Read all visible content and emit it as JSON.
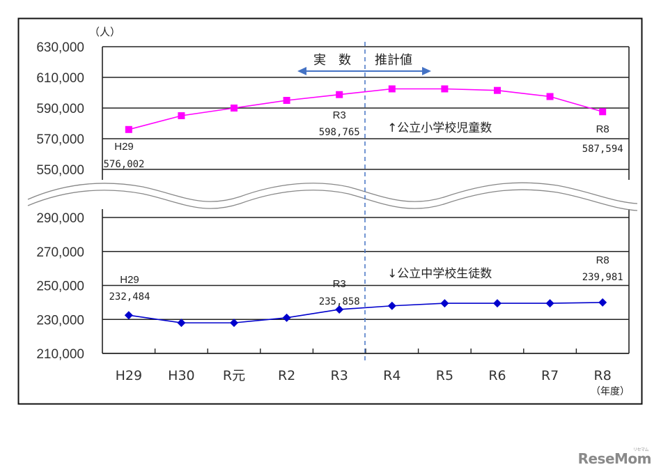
{
  "chart_data": {
    "type": "line",
    "title": "",
    "unit_label": "（人）",
    "xlabel": "（年度）",
    "categories": [
      "H29",
      "H30",
      "R元",
      "R2",
      "R3",
      "R4",
      "R5",
      "R6",
      "R7",
      "R8"
    ],
    "divider": {
      "between": [
        "R3",
        "R4"
      ],
      "left_label": "実　数",
      "right_label": "推計値",
      "style": "dashed",
      "color": "#4472c4"
    },
    "panels": [
      {
        "name": "upper",
        "ylim": [
          550000,
          630000
        ],
        "yticks": [
          "630,000",
          "610,000",
          "590,000",
          "570,000",
          "550,000"
        ],
        "series": [
          {
            "name": "↑公立小学校児童数",
            "color": "#ff00ff",
            "marker": "square",
            "values": [
              576002,
              585000,
              590000,
              595000,
              598765,
              602500,
              602500,
              601500,
              597500,
              587594
            ]
          }
        ],
        "annotations": [
          {
            "category": "H29",
            "label": "H29",
            "value": "576,002"
          },
          {
            "category": "R3",
            "label": "R3",
            "value": "598,765"
          },
          {
            "category": "R8",
            "label": "R8",
            "value": "587,594"
          }
        ]
      },
      {
        "name": "lower",
        "ylim": [
          210000,
          290000
        ],
        "yticks": [
          "290,000",
          "270,000",
          "250,000",
          "230,000",
          "210,000"
        ],
        "series": [
          {
            "name": "↓公立中学校生徒数",
            "color": "#0000cc",
            "marker": "diamond",
            "values": [
              232484,
              228000,
              228000,
              231000,
              235858,
              238000,
              239500,
              239500,
              239500,
              239981
            ]
          }
        ],
        "annotations": [
          {
            "category": "H29",
            "label": "H29",
            "value": "232,484"
          },
          {
            "category": "R3",
            "label": "R3",
            "value": "235,858"
          },
          {
            "category": "R8",
            "label": "R8",
            "value": "239,981"
          }
        ]
      }
    ],
    "axis_break": true,
    "grid": true,
    "legend_position": "inline"
  },
  "watermark": {
    "text": "ReseMom",
    "small": "リセマム"
  }
}
